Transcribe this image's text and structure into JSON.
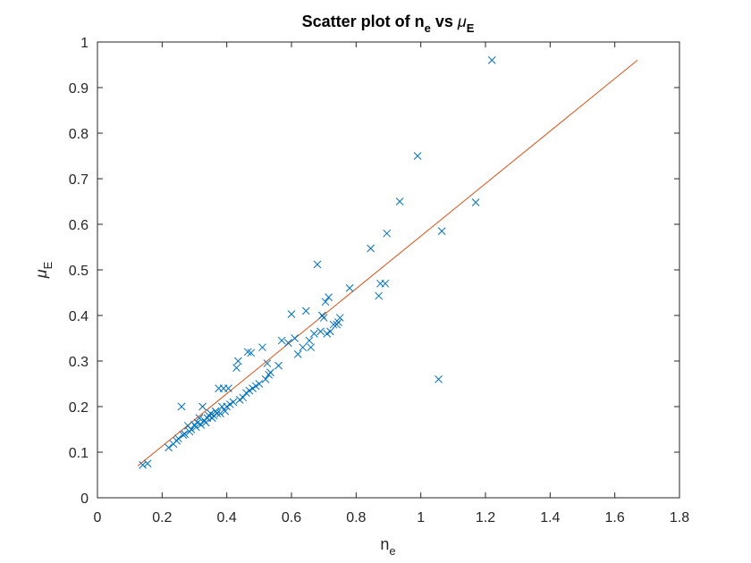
{
  "chart_data": {
    "type": "scatter",
    "title": {
      "prefix": "Scatter plot of n",
      "prefix_sub": "e",
      "middle": " vs ",
      "mu": "μ",
      "mu_sub": "E"
    },
    "xlabel": {
      "base": "n",
      "sub": "e"
    },
    "ylabel": {
      "base": "μ",
      "sub": "E"
    },
    "xlim": [
      0,
      1.8
    ],
    "ylim": [
      0,
      1
    ],
    "xticks": [
      "0",
      "0.2",
      "0.4",
      "0.6",
      "0.8",
      "1",
      "1.2",
      "1.4",
      "1.6",
      "1.8"
    ],
    "yticks": [
      "0",
      "0.1",
      "0.2",
      "0.3",
      "0.4",
      "0.5",
      "0.6",
      "0.7",
      "0.8",
      "0.9",
      "1"
    ],
    "grid": false,
    "series": [
      {
        "marker": "x",
        "color": "#0072bd",
        "points": [
          [
            0.14,
            0.072
          ],
          [
            0.155,
            0.075
          ],
          [
            0.22,
            0.11
          ],
          [
            0.235,
            0.118
          ],
          [
            0.245,
            0.125
          ],
          [
            0.25,
            0.13
          ],
          [
            0.26,
            0.2
          ],
          [
            0.265,
            0.138
          ],
          [
            0.27,
            0.14
          ],
          [
            0.28,
            0.158
          ],
          [
            0.285,
            0.145
          ],
          [
            0.29,
            0.15
          ],
          [
            0.3,
            0.16
          ],
          [
            0.305,
            0.155
          ],
          [
            0.31,
            0.165
          ],
          [
            0.315,
            0.175
          ],
          [
            0.32,
            0.16
          ],
          [
            0.325,
            0.2
          ],
          [
            0.33,
            0.17
          ],
          [
            0.335,
            0.165
          ],
          [
            0.34,
            0.175
          ],
          [
            0.345,
            0.18
          ],
          [
            0.35,
            0.185
          ],
          [
            0.355,
            0.175
          ],
          [
            0.36,
            0.18
          ],
          [
            0.365,
            0.19
          ],
          [
            0.37,
            0.185
          ],
          [
            0.375,
            0.24
          ],
          [
            0.38,
            0.185
          ],
          [
            0.385,
            0.2
          ],
          [
            0.39,
            0.24
          ],
          [
            0.395,
            0.19
          ],
          [
            0.4,
            0.2
          ],
          [
            0.405,
            0.24
          ],
          [
            0.41,
            0.205
          ],
          [
            0.42,
            0.21
          ],
          [
            0.43,
            0.285
          ],
          [
            0.435,
            0.3
          ],
          [
            0.44,
            0.215
          ],
          [
            0.45,
            0.22
          ],
          [
            0.46,
            0.23
          ],
          [
            0.465,
            0.32
          ],
          [
            0.47,
            0.235
          ],
          [
            0.475,
            0.318
          ],
          [
            0.48,
            0.24
          ],
          [
            0.49,
            0.245
          ],
          [
            0.5,
            0.25
          ],
          [
            0.51,
            0.33
          ],
          [
            0.52,
            0.26
          ],
          [
            0.525,
            0.295
          ],
          [
            0.53,
            0.27
          ],
          [
            0.535,
            0.275
          ],
          [
            0.56,
            0.29
          ],
          [
            0.57,
            0.345
          ],
          [
            0.59,
            0.34
          ],
          [
            0.6,
            0.403
          ],
          [
            0.61,
            0.35
          ],
          [
            0.62,
            0.315
          ],
          [
            0.635,
            0.33
          ],
          [
            0.645,
            0.41
          ],
          [
            0.655,
            0.345
          ],
          [
            0.66,
            0.33
          ],
          [
            0.67,
            0.36
          ],
          [
            0.68,
            0.512
          ],
          [
            0.69,
            0.365
          ],
          [
            0.695,
            0.4
          ],
          [
            0.7,
            0.395
          ],
          [
            0.705,
            0.43
          ],
          [
            0.71,
            0.36
          ],
          [
            0.715,
            0.44
          ],
          [
            0.72,
            0.365
          ],
          [
            0.73,
            0.38
          ],
          [
            0.74,
            0.38
          ],
          [
            0.745,
            0.385
          ],
          [
            0.75,
            0.395
          ],
          [
            0.78,
            0.46
          ],
          [
            0.845,
            0.547
          ],
          [
            0.87,
            0.443
          ],
          [
            0.875,
            0.47
          ],
          [
            0.89,
            0.47
          ],
          [
            0.895,
            0.58
          ],
          [
            0.935,
            0.65
          ],
          [
            0.99,
            0.75
          ],
          [
            1.055,
            0.26
          ],
          [
            1.065,
            0.585
          ],
          [
            1.17,
            0.648
          ],
          [
            1.22,
            0.96
          ]
        ]
      },
      {
        "type": "line",
        "color": "#d95319",
        "points": [
          [
            0.125,
            0.07
          ],
          [
            1.67,
            0.96
          ]
        ]
      }
    ]
  }
}
